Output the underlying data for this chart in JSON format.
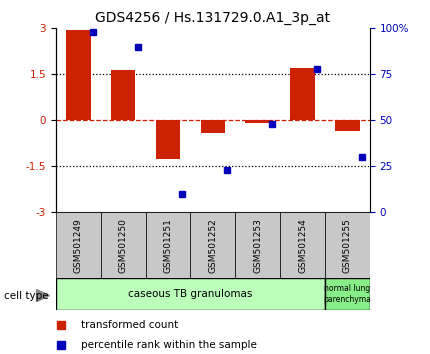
{
  "title": "GDS4256 / Hs.131729.0.A1_3p_at",
  "samples": [
    "GSM501249",
    "GSM501250",
    "GSM501251",
    "GSM501252",
    "GSM501253",
    "GSM501254",
    "GSM501255"
  ],
  "red_values": [
    2.95,
    1.65,
    -1.25,
    -0.4,
    -0.1,
    1.7,
    -0.35
  ],
  "blue_values": [
    98,
    90,
    10,
    23,
    48,
    78,
    30
  ],
  "ylim_left": [
    -3,
    3
  ],
  "ylim_right": [
    0,
    100
  ],
  "yticks_left": [
    -3,
    -1.5,
    0,
    1.5,
    3
  ],
  "yticks_right": [
    0,
    25,
    50,
    75,
    100
  ],
  "ytick_labels_right": [
    "0",
    "25",
    "50",
    "75",
    "100%"
  ],
  "hlines": [
    1.5,
    -1.5
  ],
  "red_color": "#cc2200",
  "blue_color": "#0000bb",
  "sample_bg_color": "#c8c8c8",
  "caseous_color": "#bbffbb",
  "normal_color": "#88ee88",
  "legend_red": "transformed count",
  "legend_blue": "percentile rank within the sample",
  "cell_type_label": "cell type",
  "title_fontsize": 10,
  "tick_fontsize": 7.5,
  "sample_fontsize": 6.5,
  "cell_fontsize": 7.5,
  "legend_fontsize": 7.5
}
